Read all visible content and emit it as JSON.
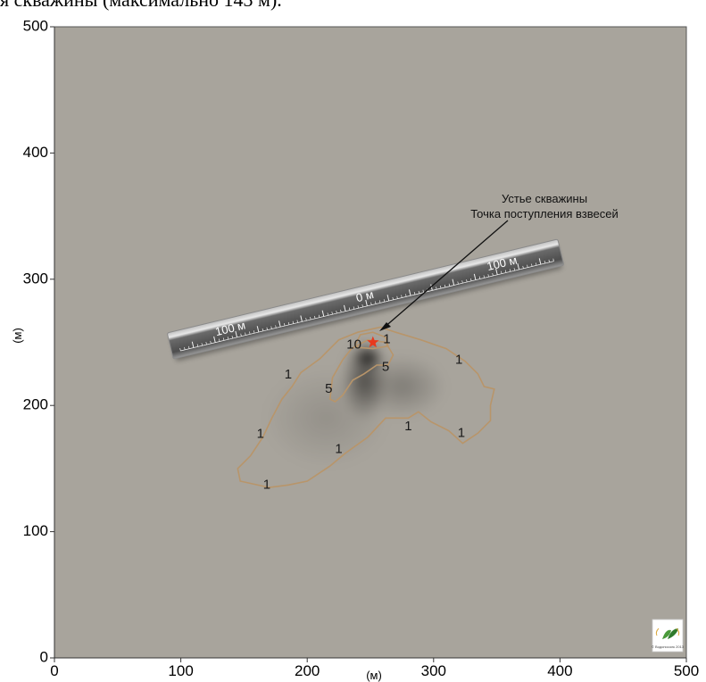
{
  "header": {
    "partial_caption": "я скважины (максимально 143 м)."
  },
  "chart_data": {
    "type": "heatmap",
    "title": "",
    "xlabel": "(м)",
    "ylabel": "(м)",
    "xlim": [
      0,
      500
    ],
    "ylim": [
      0,
      500
    ],
    "xticks": [
      0,
      100,
      200,
      300,
      400,
      500
    ],
    "yticks": [
      0,
      100,
      200,
      300,
      400,
      500
    ],
    "grid": false,
    "background_color": "#a8a49c",
    "contour_color": "#b8956a",
    "source_point": {
      "x": 252,
      "y": 250,
      "color": "#e8391d"
    },
    "annotation": {
      "line1": "Устье скважины",
      "line2": "Точка поступления взвесей"
    },
    "ruler": {
      "label_left": "100 м",
      "label_center": "0 м",
      "label_right": "100 м"
    },
    "contours": [
      {
        "level": 1,
        "points": [
          [
            170,
            135
          ],
          [
            147,
            140
          ],
          [
            145,
            150
          ],
          [
            155,
            160
          ],
          [
            165,
            175
          ],
          [
            172,
            190
          ],
          [
            180,
            205
          ],
          [
            188,
            215
          ],
          [
            195,
            226
          ],
          [
            210,
            237
          ],
          [
            218,
            245
          ],
          [
            225,
            252
          ],
          [
            240,
            258
          ],
          [
            258,
            262
          ],
          [
            270,
            258
          ],
          [
            290,
            252
          ],
          [
            310,
            245
          ],
          [
            325,
            235
          ],
          [
            335,
            225
          ],
          [
            340,
            215
          ],
          [
            348,
            213
          ],
          [
            345,
            200
          ],
          [
            345,
            188
          ],
          [
            335,
            178
          ],
          [
            323,
            170
          ],
          [
            312,
            180
          ],
          [
            298,
            187
          ],
          [
            288,
            195
          ],
          [
            280,
            190
          ],
          [
            262,
            190
          ],
          [
            248,
            175
          ],
          [
            230,
            162
          ],
          [
            218,
            152
          ],
          [
            200,
            140
          ],
          [
            185,
            137
          ],
          [
            170,
            135
          ]
        ]
      },
      {
        "level": 5,
        "points": [
          [
            218,
            205
          ],
          [
            220,
            222
          ],
          [
            228,
            236
          ],
          [
            235,
            245
          ],
          [
            248,
            252
          ],
          [
            262,
            250
          ],
          [
            268,
            240
          ],
          [
            264,
            232
          ],
          [
            255,
            232
          ],
          [
            245,
            225
          ],
          [
            236,
            220
          ],
          [
            228,
            208
          ],
          [
            222,
            203
          ],
          [
            218,
            205
          ]
        ]
      },
      {
        "level": 10,
        "points": [
          [
            238,
            248
          ],
          [
            242,
            256
          ],
          [
            252,
            258
          ],
          [
            262,
            254
          ],
          [
            264,
            247
          ],
          [
            252,
            245
          ],
          [
            240,
            246
          ],
          [
            238,
            248
          ]
        ]
      }
    ],
    "contour_labels": [
      {
        "text": "1",
        "x": 263,
        "y": 252
      },
      {
        "text": "1",
        "x": 320,
        "y": 236
      },
      {
        "text": "1",
        "x": 185,
        "y": 224
      },
      {
        "text": "1",
        "x": 163,
        "y": 177
      },
      {
        "text": "1",
        "x": 168,
        "y": 137
      },
      {
        "text": "1",
        "x": 225,
        "y": 165
      },
      {
        "text": "1",
        "x": 280,
        "y": 183
      },
      {
        "text": "1",
        "x": 322,
        "y": 178
      },
      {
        "text": "5",
        "x": 217,
        "y": 213
      },
      {
        "text": "5",
        "x": 262,
        "y": 230
      },
      {
        "text": "10",
        "x": 237,
        "y": 248
      }
    ],
    "plume": [
      {
        "x": 248,
        "y": 238,
        "rx": 12,
        "ry": 9,
        "opacity": 0.95
      },
      {
        "x": 245,
        "y": 220,
        "rx": 18,
        "ry": 32,
        "opacity": 0.55
      },
      {
        "x": 275,
        "y": 215,
        "rx": 35,
        "ry": 25,
        "opacity": 0.25
      },
      {
        "x": 215,
        "y": 190,
        "rx": 50,
        "ry": 40,
        "opacity": 0.12
      }
    ],
    "credit": "© Водоносолк 2013"
  }
}
